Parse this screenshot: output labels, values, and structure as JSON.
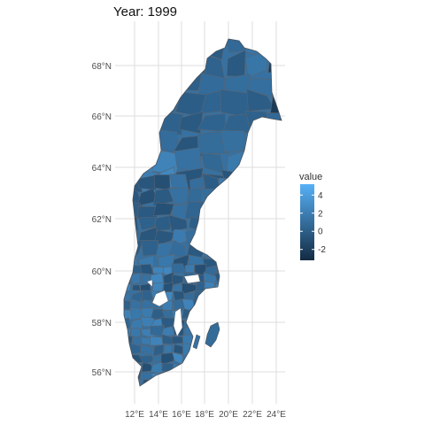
{
  "title": "Year: 1999",
  "map": {
    "y_ticks": [
      "56°N",
      "58°N",
      "60°N",
      "62°N",
      "64°N",
      "66°N",
      "68°N"
    ],
    "x_ticks": [
      "12°E",
      "14°E",
      "16°E",
      "18°E",
      "20°E",
      "22°E",
      "24°E"
    ],
    "panel_background": "#ffffff",
    "grid_color": "#dedede",
    "region_border_color": "#5a6470"
  },
  "legend": {
    "title": "value",
    "labels": [
      "4",
      "2",
      "0",
      "-2"
    ],
    "values": [
      4,
      2,
      0,
      -2
    ],
    "range": [
      -3.2,
      5.2
    ],
    "low_color": "#132b43",
    "high_color": "#56b1f7"
  }
}
